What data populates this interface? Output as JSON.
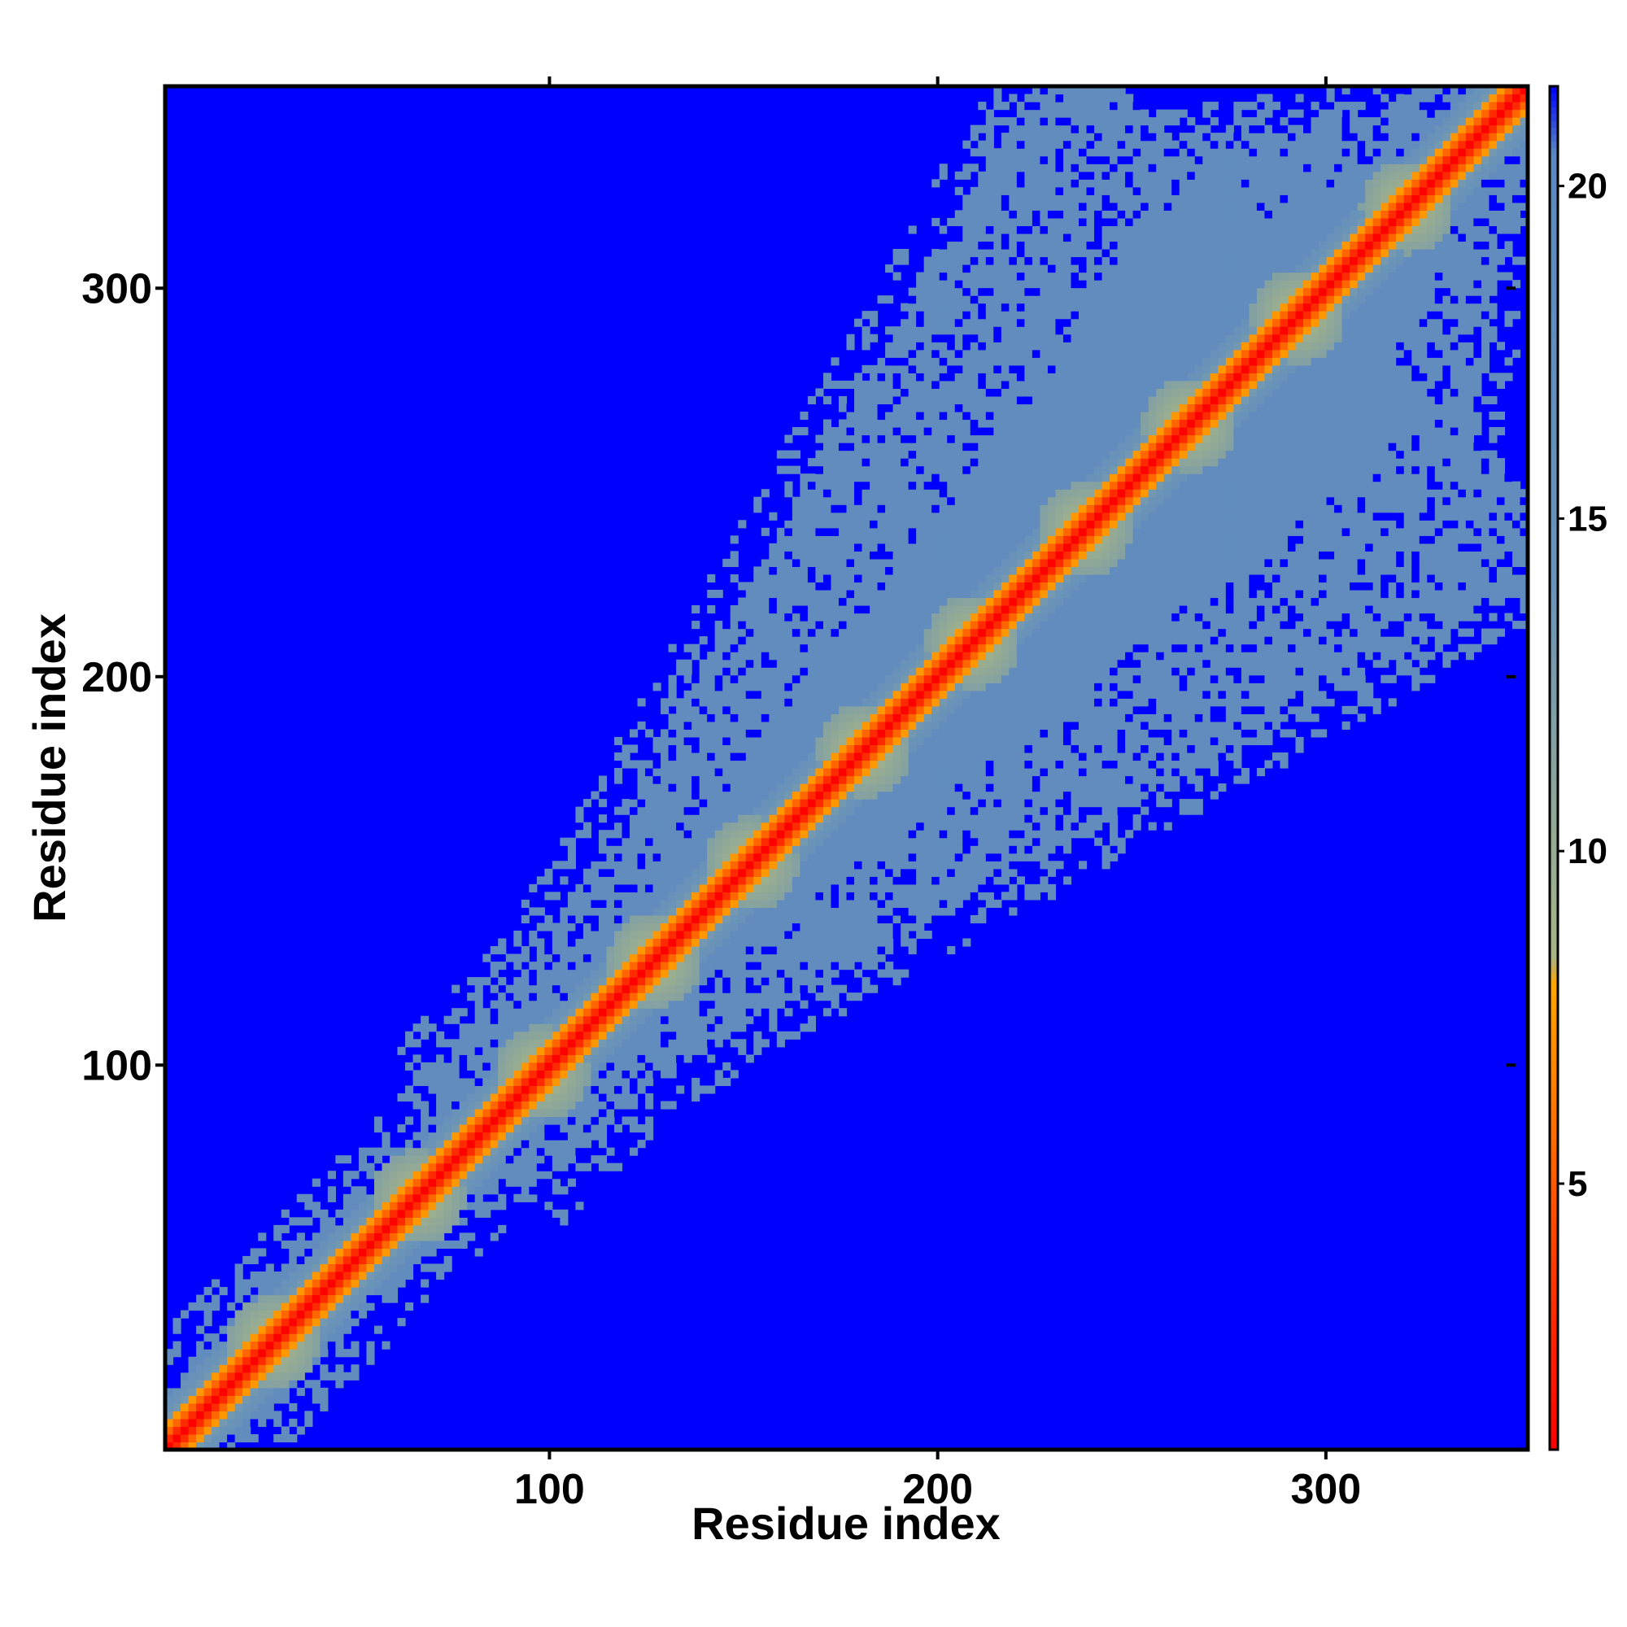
{
  "chart_data": {
    "type": "heatmap",
    "title": "",
    "xlabel": "Residue index",
    "ylabel": "Residue index",
    "xlim": [
      1,
      352
    ],
    "ylim": [
      1,
      352
    ],
    "x_ticks": [
      100,
      200,
      300
    ],
    "y_ticks": [
      100,
      200,
      300
    ],
    "colorbar": {
      "ticks": [
        5,
        10,
        15,
        20
      ],
      "range": [
        1,
        21.5
      ],
      "placement": "right",
      "stops": [
        {
          "value": 1,
          "color": "#ff0000"
        },
        {
          "value": 4,
          "color": "#ff4000"
        },
        {
          "value": 8,
          "color": "#ffa500"
        },
        {
          "value": 8.4,
          "color": "#a7b484"
        },
        {
          "value": 14,
          "color": "#6a93b8"
        },
        {
          "value": 20.5,
          "color": "#5b88c0"
        },
        {
          "value": 21.5,
          "color": "#0000ff"
        }
      ]
    },
    "matrix_description_values": {
      "diagonal_value": 1,
      "background_value": 21.5,
      "core_value": 18,
      "helix_hairpin_centers": [
        29,
        66,
        98,
        127,
        152,
        181,
        209,
        238,
        265,
        293,
        321
      ]
    },
    "grid": false,
    "legend": "colorbar"
  }
}
